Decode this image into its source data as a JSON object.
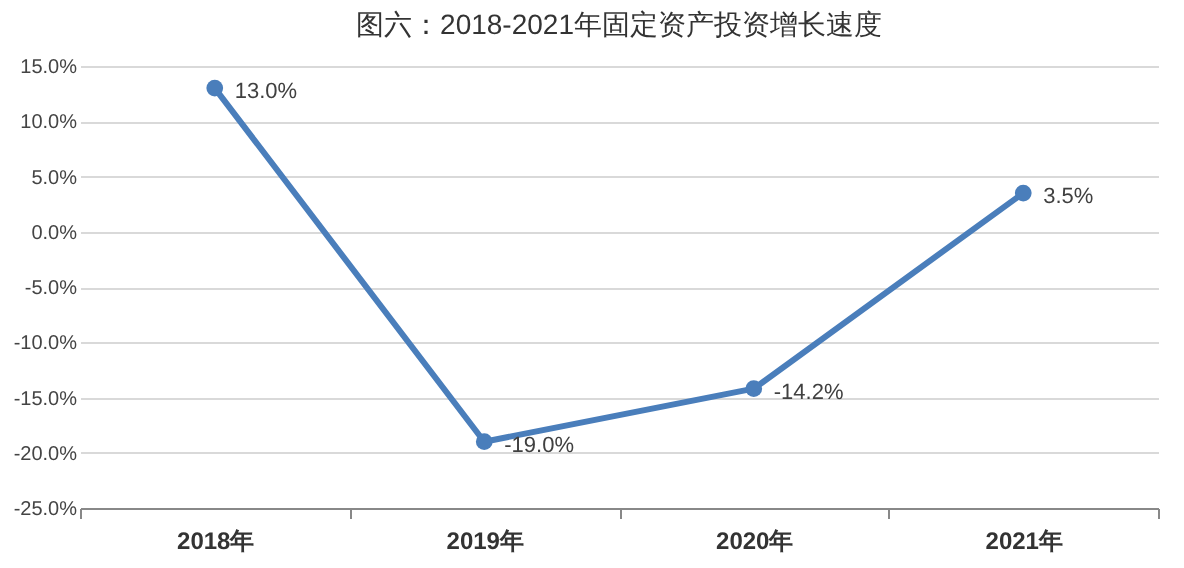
{
  "chart_data": {
    "type": "line",
    "title": "图六：2018-2021年固定资产投资增长速度",
    "categories": [
      "2018年",
      "2019年",
      "2020年",
      "2021年"
    ],
    "series": [
      {
        "color": "#4a7ebb",
        "values": [
          13.0,
          -19.0,
          -14.2,
          3.5
        ],
        "value_labels": [
          "13.0%",
          "-19.0%",
          "-14.2%",
          "3.5%"
        ]
      }
    ],
    "ylim": [
      -25,
      15
    ],
    "yticks": [
      {
        "value": -25,
        "label": "-25.0%"
      },
      {
        "value": -20,
        "label": "-20.0%"
      },
      {
        "value": -15,
        "label": "-15.0%"
      },
      {
        "value": -10,
        "label": "-10.0%"
      },
      {
        "value": -5,
        "label": "-5.0%"
      },
      {
        "value": 0,
        "label": "0.0%"
      },
      {
        "value": 5,
        "label": "5.0%"
      },
      {
        "value": 10,
        "label": "10.0%"
      },
      {
        "value": 15,
        "label": "15.0%"
      }
    ],
    "grid": "y",
    "marker": "circle",
    "line_style": "solid"
  }
}
